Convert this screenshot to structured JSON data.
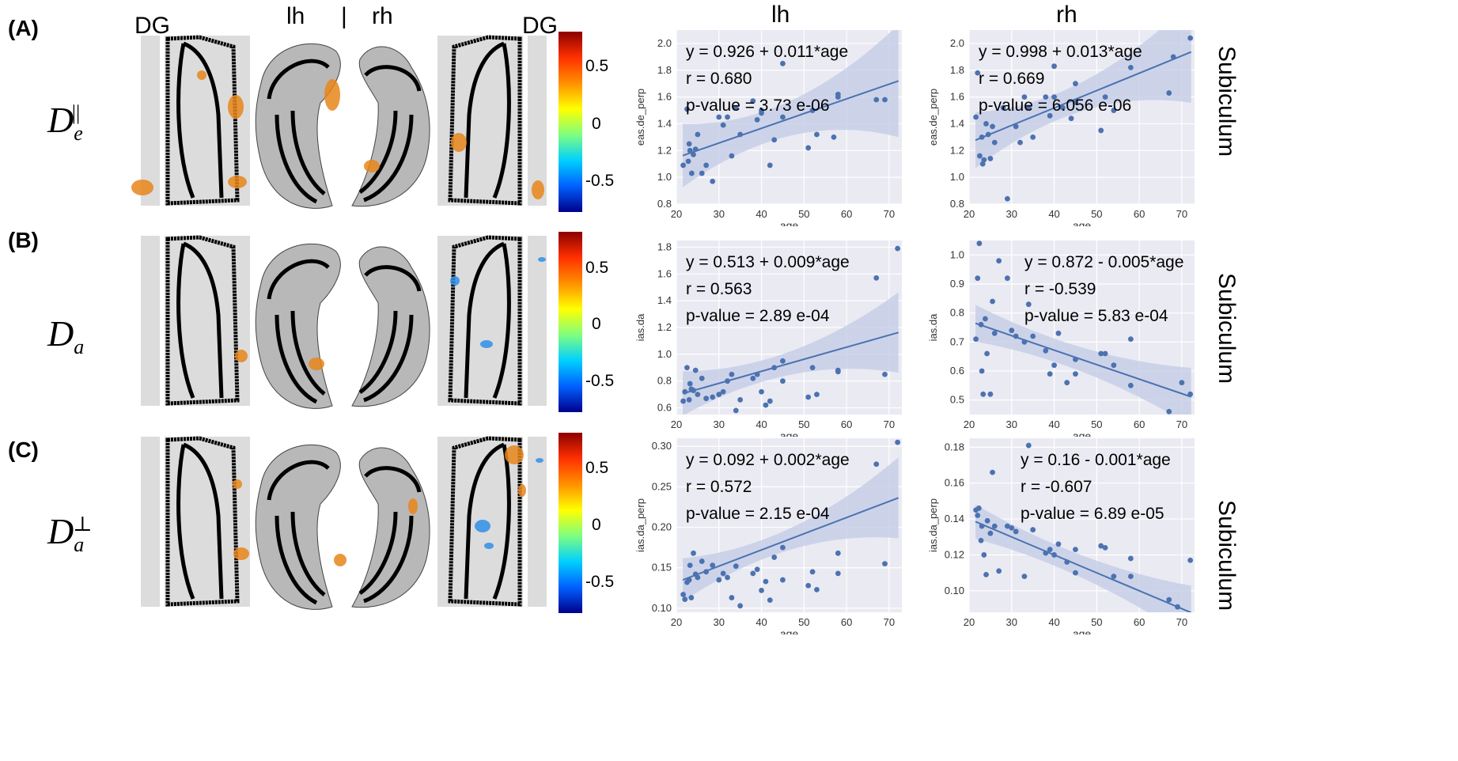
{
  "rows": [
    {
      "id": "A",
      "label": "(A)",
      "symbol": "D",
      "sub": "e",
      "sup": "||"
    },
    {
      "id": "B",
      "label": "(B)",
      "symbol": "D",
      "sub": "a",
      "sup": ""
    },
    {
      "id": "C",
      "label": "(C)",
      "symbol": "D",
      "sub": "a",
      "sup": "⊥"
    }
  ],
  "headers": {
    "dg_left": "DG",
    "lh": "lh",
    "sep": "|",
    "rh": "rh",
    "dg_right": "DG",
    "col_lh": "lh",
    "col_rh": "rh"
  },
  "colorbar": {
    "ticks": [
      "0.5",
      "0",
      "-0.5"
    ],
    "range": [
      -0.8,
      0.8
    ]
  },
  "side_label": "Subiculum",
  "colors": {
    "point": "#4c72b0",
    "line": "#4c72b0",
    "band": "#c4cde6",
    "plot_bg": "#eaeaf2",
    "grid": "#ffffff",
    "mask": "#dcdcdc",
    "outline": "#000000",
    "cluster_pos": "#e8851a",
    "cluster_neg": "#2f8fe8"
  },
  "chart_data": [
    {
      "type": "scatter",
      "panel": "A-lh",
      "xlabel": "age",
      "ylabel": "eas.de_perp",
      "xlim": [
        20,
        73
      ],
      "ylim": [
        0.8,
        2.1
      ],
      "xticks": [
        20,
        30,
        40,
        50,
        60,
        70
      ],
      "yticks": [
        0.8,
        1.0,
        1.2,
        1.4,
        1.6,
        1.8,
        2.0
      ],
      "decimals": 1,
      "annotations": [
        "y = 0.926 + 0.011*age",
        "r = 0.680",
        "p-value = 3.73 e-06"
      ],
      "fit": {
        "intercept": 0.926,
        "slope": 0.011
      },
      "band": [
        0.12,
        0.42
      ],
      "x": [
        21.6,
        22.5,
        22.8,
        23.0,
        23.2,
        23.6,
        24.0,
        24.5,
        25.0,
        26.0,
        27.0,
        28.5,
        30.0,
        31.0,
        32.0,
        33.0,
        34.0,
        35.0,
        38.0,
        39.0,
        40.0,
        40.0,
        42.0,
        43.0,
        45.0,
        45.0,
        51.0,
        52.0,
        53.0,
        57.0,
        58.0,
        58.0,
        67.0,
        69.0
      ],
      "y": [
        1.09,
        1.51,
        1.12,
        1.25,
        1.2,
        1.03,
        1.17,
        1.21,
        1.32,
        1.03,
        1.09,
        0.97,
        1.45,
        1.39,
        1.45,
        1.16,
        1.52,
        1.32,
        1.57,
        1.43,
        1.5,
        1.48,
        1.09,
        1.28,
        1.85,
        1.45,
        1.22,
        1.5,
        1.32,
        1.3,
        1.6,
        1.62,
        1.58,
        1.58
      ]
    },
    {
      "type": "scatter",
      "panel": "A-rh",
      "xlabel": "age",
      "ylabel": "eas.de_perp",
      "xlim": [
        20,
        73
      ],
      "ylim": [
        0.8,
        2.1
      ],
      "xticks": [
        20,
        30,
        40,
        50,
        60,
        70
      ],
      "yticks": [
        0.8,
        1.0,
        1.2,
        1.4,
        1.6,
        1.8,
        2.0
      ],
      "decimals": 1,
      "annotations": [
        "y = 0.998 + 0.013*age",
        "r = 0.669",
        "p-value = 6.056 e-06"
      ],
      "fit": {
        "intercept": 0.998,
        "slope": 0.013
      },
      "band": [
        0.1,
        0.38
      ],
      "x": [
        21.6,
        22.0,
        22.5,
        23.0,
        23.2,
        23.5,
        24.0,
        24.5,
        25.0,
        25.5,
        26.0,
        28.0,
        29.0,
        31.0,
        32.0,
        33.0,
        34.0,
        35.0,
        38.0,
        39.0,
        40.0,
        40.0,
        42.0,
        44.0,
        45.0,
        45.0,
        51.0,
        52.0,
        54.0,
        58.0,
        67.0,
        68.0,
        72.0
      ],
      "y": [
        1.45,
        1.78,
        1.16,
        1.3,
        1.1,
        1.13,
        1.4,
        1.32,
        1.14,
        1.38,
        1.26,
        1.52,
        0.84,
        1.38,
        1.26,
        1.6,
        1.52,
        1.3,
        1.6,
        1.46,
        1.83,
        1.6,
        1.52,
        1.44,
        1.7,
        1.56,
        1.35,
        1.6,
        1.5,
        1.82,
        1.63,
        1.9,
        2.04
      ]
    },
    {
      "type": "scatter",
      "panel": "B-lh",
      "xlabel": "age",
      "ylabel": "ias.da",
      "xlim": [
        20,
        73
      ],
      "ylim": [
        0.55,
        1.85
      ],
      "xticks": [
        20,
        30,
        40,
        50,
        60,
        70
      ],
      "yticks": [
        0.6,
        0.8,
        1.0,
        1.2,
        1.4,
        1.6,
        1.8
      ],
      "decimals": 1,
      "annotations": [
        "y = 0.513 + 0.009*age",
        "r = 0.563",
        "p-value = 2.89 e-04"
      ],
      "fit": {
        "intercept": 0.513,
        "slope": 0.009
      },
      "band": [
        0.08,
        0.3
      ],
      "x": [
        21.6,
        22.0,
        22.5,
        23.0,
        23.2,
        23.5,
        24.0,
        24.5,
        25.0,
        26.0,
        27.0,
        28.5,
        30.0,
        31.0,
        32.0,
        33.0,
        34.0,
        35.0,
        38.0,
        39.0,
        40.0,
        41.0,
        42.0,
        43.0,
        45.0,
        45.0,
        51.0,
        52.0,
        53.0,
        58.0,
        58.0,
        67.0,
        69.0,
        72.0
      ],
      "y": [
        0.65,
        0.72,
        0.9,
        0.66,
        0.78,
        0.74,
        0.73,
        0.88,
        0.7,
        0.82,
        0.67,
        0.68,
        0.7,
        0.72,
        0.8,
        0.85,
        0.58,
        0.66,
        0.82,
        0.85,
        0.72,
        0.62,
        0.65,
        0.9,
        0.8,
        0.95,
        0.68,
        0.9,
        0.7,
        0.88,
        0.87,
        1.57,
        0.85,
        1.79
      ]
    },
    {
      "type": "scatter",
      "panel": "B-rh",
      "xlabel": "age",
      "ylabel": "ias.da",
      "xlim": [
        20,
        73
      ],
      "ylim": [
        0.45,
        1.05
      ],
      "xticks": [
        20,
        30,
        40,
        50,
        60,
        70
      ],
      "yticks": [
        0.5,
        0.6,
        0.7,
        0.8,
        0.9,
        1.0
      ],
      "decimals": 1,
      "annotations": [
        "y = 0.872 - 0.005*age",
        "r = -0.539",
        "p-value = 5.83 e-04"
      ],
      "fit": {
        "intercept": 0.872,
        "slope": -0.005
      },
      "band": [
        0.04,
        0.1
      ],
      "x": [
        21.6,
        22.0,
        22.4,
        22.8,
        23.0,
        23.3,
        23.8,
        24.2,
        25.0,
        25.5,
        26.0,
        27.0,
        29.0,
        30.0,
        31.0,
        33.0,
        34.0,
        35.0,
        38.0,
        39.0,
        40.0,
        41.0,
        43.0,
        45.0,
        45.0,
        51.0,
        52.0,
        54.0,
        58.0,
        58.0,
        67.0,
        70.0,
        72.0
      ],
      "y": [
        0.71,
        0.92,
        1.04,
        0.76,
        0.6,
        0.52,
        0.78,
        0.66,
        0.52,
        0.84,
        0.73,
        0.98,
        0.92,
        0.74,
        0.72,
        0.7,
        0.83,
        0.72,
        0.67,
        0.59,
        0.62,
        0.73,
        0.56,
        0.64,
        0.59,
        0.66,
        0.66,
        0.62,
        0.55,
        0.71,
        0.46,
        0.56,
        0.52
      ]
    },
    {
      "type": "scatter",
      "panel": "C-lh",
      "xlabel": "age",
      "ylabel": "ias.da_perp",
      "xlim": [
        20,
        73
      ],
      "ylim": [
        0.095,
        0.31
      ],
      "xticks": [
        20,
        30,
        40,
        50,
        60,
        70
      ],
      "yticks": [
        0.1,
        0.15,
        0.2,
        0.25,
        0.3
      ],
      "decimals": 2,
      "annotations": [
        "y = 0.092 + 0.002*age",
        "r = 0.572",
        "p-value = 2.15 e-04"
      ],
      "fit": {
        "intercept": 0.092,
        "slope": 0.002
      },
      "band": [
        0.012,
        0.05
      ],
      "x": [
        21.6,
        22.0,
        22.5,
        23.0,
        23.2,
        23.5,
        24.0,
        24.5,
        25.0,
        26.0,
        27.0,
        28.5,
        30.0,
        31.0,
        32.0,
        33.0,
        34.0,
        35.0,
        38.0,
        39.0,
        40.0,
        41.0,
        42.0,
        43.0,
        45.0,
        45.0,
        51.0,
        52.0,
        53.0,
        58.0,
        58.0,
        67.0,
        69.0,
        72.0
      ],
      "y": [
        0.117,
        0.111,
        0.132,
        0.135,
        0.153,
        0.113,
        0.168,
        0.142,
        0.138,
        0.158,
        0.145,
        0.153,
        0.135,
        0.143,
        0.138,
        0.113,
        0.152,
        0.103,
        0.143,
        0.148,
        0.122,
        0.133,
        0.11,
        0.163,
        0.175,
        0.135,
        0.128,
        0.145,
        0.123,
        0.168,
        0.143,
        0.278,
        0.155,
        0.305
      ]
    },
    {
      "type": "scatter",
      "panel": "C-rh",
      "xlabel": "age",
      "ylabel": "ias.da_perp",
      "xlim": [
        20,
        73
      ],
      "ylim": [
        0.088,
        0.185
      ],
      "xticks": [
        20,
        30,
        40,
        50,
        60,
        70
      ],
      "yticks": [
        0.1,
        0.12,
        0.14,
        0.16,
        0.18
      ],
      "decimals": 2,
      "annotations": [
        "y = 0.16 - 0.001*age",
        "r = -0.607",
        "p-value = 6.89 e-05"
      ],
      "fit": {
        "intercept": 0.16,
        "slope": -0.001
      },
      "band": [
        0.006,
        0.015
      ],
      "x": [
        21.6,
        22.0,
        22.3,
        22.8,
        23.0,
        23.5,
        24.0,
        24.3,
        25.0,
        25.5,
        26.0,
        27.0,
        29.0,
        30.0,
        31.0,
        33.0,
        34.0,
        35.0,
        38.0,
        39.0,
        40.0,
        41.0,
        43.0,
        45.0,
        45.0,
        51.0,
        52.0,
        54.0,
        58.0,
        58.0,
        67.0,
        69.0,
        72.0
      ],
      "y": [
        0.145,
        0.142,
        0.146,
        0.128,
        0.136,
        0.12,
        0.109,
        0.139,
        0.132,
        0.166,
        0.136,
        0.111,
        0.136,
        0.135,
        0.133,
        0.108,
        0.181,
        0.134,
        0.121,
        0.123,
        0.12,
        0.126,
        0.116,
        0.123,
        0.11,
        0.125,
        0.124,
        0.108,
        0.118,
        0.108,
        0.095,
        0.091,
        0.117
      ]
    }
  ]
}
